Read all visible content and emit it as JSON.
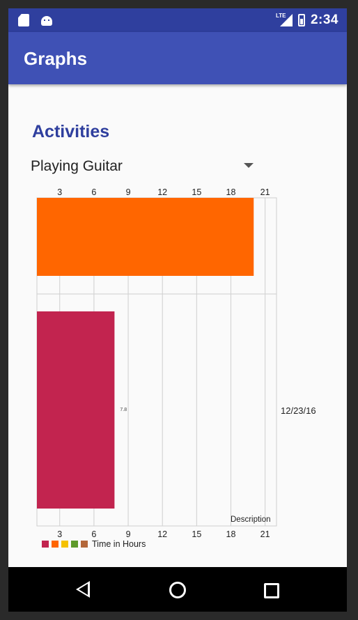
{
  "status_bar": {
    "network_label": "LTE",
    "time": "2:34",
    "icons": [
      "sd-card-icon",
      "android-icon",
      "lte-signal-icon",
      "battery-icon"
    ]
  },
  "app_bar": {
    "title": "Graphs"
  },
  "section_title": "Activities",
  "activity_spinner": {
    "selected": "Playing Guitar"
  },
  "chart_data": {
    "type": "bar",
    "orientation": "horizontal",
    "x_ticks": [
      "3",
      "6",
      "9",
      "12",
      "15",
      "18",
      "21"
    ],
    "xlim": [
      1,
      22
    ],
    "bars": [
      {
        "value": 20,
        "color": "#ff6600",
        "value_label": ""
      },
      {
        "value": 7.8,
        "color": "#c2244f",
        "value_label": "7.8"
      }
    ],
    "category_label": "12/23/16",
    "description": "Description",
    "legend": {
      "colors": [
        "#c2244f",
        "#ff6600",
        "#f5c200",
        "#5e9a2a",
        "#b3673a"
      ],
      "label": "Time in Hours"
    },
    "grid": true
  },
  "nav_bar": {
    "icons": [
      "back-icon",
      "home-icon",
      "recents-icon"
    ]
  }
}
